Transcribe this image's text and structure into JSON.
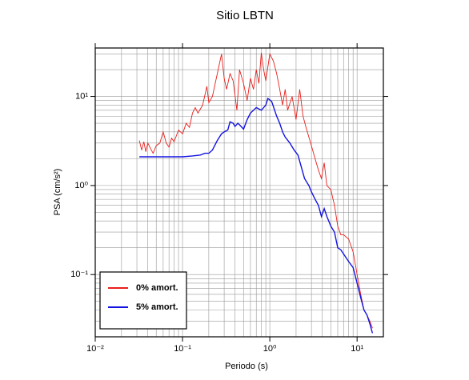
{
  "chart_data": {
    "type": "line",
    "title": "Sitio LBTN",
    "xlabel": "Periodo (s)",
    "ylabel": "PSA (cm/s²)",
    "xscale": "log",
    "yscale": "log",
    "grid": true,
    "legend": "lower left",
    "xlim": [
      0.01,
      20
    ],
    "ylim": [
      0.02,
      35
    ],
    "xticks": [
      {
        "value": 0.01,
        "label": "10⁻²"
      },
      {
        "value": 0.1,
        "label": "10⁻¹"
      },
      {
        "value": 1,
        "label": "10⁰"
      },
      {
        "value": 10,
        "label": "10¹"
      }
    ],
    "yticks": [
      {
        "value": 0.1,
        "label": "10⁻¹"
      },
      {
        "value": 1,
        "label": "10⁰"
      },
      {
        "value": 10,
        "label": "10¹"
      }
    ],
    "xminorticks": [
      0.02,
      0.03,
      0.04,
      0.05,
      0.06,
      0.07,
      0.08,
      0.09,
      0.2,
      0.3,
      0.4,
      0.5,
      0.6,
      0.7,
      0.8,
      0.9,
      2,
      3,
      4,
      5,
      6,
      7,
      8,
      9
    ],
    "yminorticks": [
      0.03,
      0.04,
      0.05,
      0.06,
      0.07,
      0.08,
      0.09,
      0.2,
      0.3,
      0.4,
      0.5,
      0.6,
      0.7,
      0.8,
      0.9,
      2,
      3,
      4,
      5,
      6,
      7,
      8,
      9,
      20,
      30
    ],
    "series": [
      {
        "name": "0% amort.",
        "color": "#e8201c",
        "x": [
          0.032,
          0.034,
          0.036,
          0.038,
          0.04,
          0.043,
          0.046,
          0.05,
          0.055,
          0.06,
          0.065,
          0.07,
          0.075,
          0.08,
          0.09,
          0.1,
          0.11,
          0.12,
          0.13,
          0.14,
          0.15,
          0.17,
          0.19,
          0.2,
          0.22,
          0.25,
          0.28,
          0.3,
          0.32,
          0.35,
          0.38,
          0.42,
          0.45,
          0.5,
          0.55,
          0.6,
          0.65,
          0.7,
          0.75,
          0.8,
          0.85,
          0.9,
          1.0,
          1.1,
          1.2,
          1.3,
          1.4,
          1.5,
          1.6,
          1.8,
          2.0,
          2.2,
          2.4,
          2.6,
          2.8,
          3.0,
          3.3,
          3.6,
          3.9,
          4.2,
          4.5,
          5.0,
          5.5,
          6.0,
          6.5,
          7.0,
          8.0,
          9.0,
          10,
          11,
          12,
          13,
          14,
          15
        ],
        "values": [
          3.2,
          2.5,
          3.1,
          2.4,
          3.0,
          2.6,
          2.3,
          2.8,
          3.0,
          4.0,
          3.0,
          2.7,
          3.4,
          3.1,
          4.2,
          3.8,
          5.0,
          4.5,
          6.5,
          7.5,
          6.5,
          8.0,
          13.0,
          8.5,
          10.0,
          18.0,
          30.0,
          16.0,
          12.0,
          18.0,
          15.0,
          7.0,
          20.0,
          14.0,
          9.0,
          16.0,
          12.0,
          20.0,
          14.0,
          31.0,
          20.0,
          15.0,
          30.0,
          25.0,
          18.0,
          12.0,
          8.0,
          12.0,
          7.0,
          10.0,
          5.5,
          12.0,
          6.0,
          4.5,
          3.5,
          2.8,
          2.0,
          1.5,
          1.2,
          1.8,
          1.0,
          0.9,
          0.6,
          0.35,
          0.28,
          0.28,
          0.25,
          0.18,
          0.1,
          0.06,
          0.04,
          0.035,
          0.03,
          0.025
        ]
      },
      {
        "name": "5% amort.",
        "color": "#1414e0",
        "x": [
          0.032,
          0.05,
          0.1,
          0.13,
          0.16,
          0.18,
          0.2,
          0.22,
          0.25,
          0.28,
          0.3,
          0.33,
          0.35,
          0.38,
          0.4,
          0.43,
          0.45,
          0.5,
          0.55,
          0.6,
          0.7,
          0.8,
          0.9,
          0.95,
          1.05,
          1.2,
          1.3,
          1.4,
          1.5,
          1.7,
          1.9,
          2.1,
          2.3,
          2.5,
          2.8,
          3.0,
          3.3,
          3.6,
          3.9,
          4.2,
          4.5,
          5.0,
          5.5,
          6.0,
          6.5,
          7.0,
          8.0,
          9.0,
          10,
          11,
          12,
          13,
          14,
          15
        ],
        "values": [
          2.1,
          2.1,
          2.1,
          2.15,
          2.2,
          2.3,
          2.3,
          2.5,
          3.2,
          3.8,
          4.0,
          4.2,
          5.2,
          5.0,
          4.6,
          5.0,
          4.8,
          4.3,
          5.5,
          6.5,
          7.5,
          7.0,
          8.0,
          9.5,
          8.8,
          6.0,
          5.0,
          4.0,
          3.5,
          3.0,
          2.5,
          2.2,
          1.6,
          1.2,
          1.0,
          0.85,
          0.7,
          0.6,
          0.45,
          0.55,
          0.45,
          0.35,
          0.3,
          0.2,
          0.19,
          0.17,
          0.14,
          0.12,
          0.08,
          0.055,
          0.04,
          0.035,
          0.028,
          0.022
        ]
      }
    ]
  }
}
